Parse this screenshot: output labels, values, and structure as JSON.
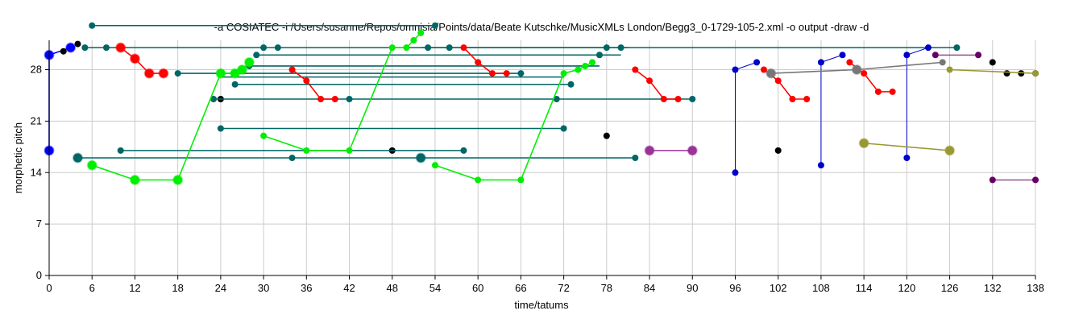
{
  "chart_data": {
    "type": "scatter",
    "title": "-a COSIATEC -i /Users/susanne/Repos/omnisia/Points/data/Beate Kutschke/MusicXMLs London/Begg3_0-1729-105-2.xml -o output -draw -d",
    "xlabel": "time/tatums",
    "ylabel": "morphetic pitch",
    "xlim": [
      0,
      138
    ],
    "ylim": [
      0,
      32
    ],
    "xticks": [
      "0",
      "6",
      "12",
      "18",
      "24",
      "30",
      "36",
      "42",
      "48",
      "54",
      "60",
      "66",
      "72",
      "78",
      "84",
      "90",
      "96",
      "102",
      "108",
      "114",
      "120",
      "126",
      "132",
      "138"
    ],
    "yticks": [
      "0",
      "7",
      "14",
      "21",
      "28"
    ],
    "grid": true,
    "series": [
      {
        "color": "#0000ff",
        "lines": [
          [
            [
              0,
              17
            ],
            [
              0,
              30
            ]
          ],
          [
            [
              0,
              30
            ],
            [
              3,
              31
            ]
          ]
        ],
        "big": [
          [
            0,
            17
          ],
          [
            0,
            30
          ],
          [
            3,
            31
          ]
        ],
        "small": []
      },
      {
        "color": "#000000",
        "lines": [],
        "big": [],
        "small": [
          [
            2,
            30.5
          ],
          [
            4,
            31.5
          ],
          [
            24,
            24
          ],
          [
            48,
            17
          ],
          [
            78,
            19
          ],
          [
            102,
            17
          ],
          [
            132,
            29
          ],
          [
            134,
            27.5
          ],
          [
            136,
            27.5
          ],
          [
            138,
            27.5
          ]
        ]
      },
      {
        "color": "#006666",
        "lines": [
          [
            [
              6,
              34
            ],
            [
              54,
              34
            ]
          ],
          [
            [
              5,
              31
            ],
            [
              81,
              31
            ]
          ],
          [
            [
              18,
              27.5
            ],
            [
              66,
              27.5
            ]
          ],
          [
            [
              24,
              20
            ],
            [
              72,
              20
            ]
          ],
          [
            [
              10,
              17
            ],
            [
              58,
              17
            ]
          ],
          [
            [
              4,
              16
            ],
            [
              82,
              16
            ]
          ],
          [
            [
              24,
              27
            ],
            [
              72,
              27
            ]
          ],
          [
            [
              26,
              26
            ],
            [
              73,
              26
            ]
          ],
          [
            [
              23,
              24
            ],
            [
              90,
              24
            ]
          ],
          [
            [
              29,
              30
            ],
            [
              80,
              30
            ]
          ],
          [
            [
              28,
              28.5
            ],
            [
              77,
              28.5
            ]
          ],
          [
            [
              52,
              31
            ],
            [
              127,
              31
            ]
          ]
        ],
        "big": [
          [
            4,
            16
          ],
          [
            52,
            16
          ]
        ],
        "small": [
          [
            6,
            34
          ],
          [
            54,
            34
          ],
          [
            5,
            31
          ],
          [
            8,
            31
          ],
          [
            30,
            31
          ],
          [
            32,
            31
          ],
          [
            53,
            31
          ],
          [
            56,
            31
          ],
          [
            78,
            31
          ],
          [
            80,
            31
          ],
          [
            127,
            31
          ],
          [
            18,
            27.5
          ],
          [
            66,
            27.5
          ],
          [
            24,
            20
          ],
          [
            72,
            20
          ],
          [
            10,
            17
          ],
          [
            58,
            17
          ],
          [
            82,
            16
          ],
          [
            26,
            26
          ],
          [
            73,
            26
          ],
          [
            23,
            24
          ],
          [
            42,
            24
          ],
          [
            71,
            24
          ],
          [
            90,
            24
          ],
          [
            29,
            30
          ],
          [
            77,
            30
          ],
          [
            28,
            28.5
          ],
          [
            34,
            16
          ]
        ]
      },
      {
        "color": "#ff0000",
        "lines": [
          [
            [
              10,
              31
            ],
            [
              12,
              29.5
            ],
            [
              14,
              27.5
            ],
            [
              16,
              27.5
            ]
          ],
          [
            [
              34,
              28
            ],
            [
              36,
              26.5
            ],
            [
              38,
              24
            ],
            [
              40,
              24
            ]
          ],
          [
            [
              58,
              31
            ],
            [
              60,
              29
            ],
            [
              62,
              27.5
            ],
            [
              64,
              27.5
            ]
          ],
          [
            [
              82,
              28
            ],
            [
              84,
              26.5
            ],
            [
              86,
              24
            ],
            [
              88,
              24
            ]
          ],
          [
            [
              100,
              28
            ],
            [
              102,
              26.5
            ],
            [
              104,
              24
            ],
            [
              106,
              24
            ]
          ],
          [
            [
              112,
              29
            ],
            [
              114,
              27.5
            ],
            [
              116,
              25
            ],
            [
              118,
              25
            ]
          ]
        ],
        "big": [
          [
            10,
            31
          ],
          [
            12,
            29.5
          ],
          [
            14,
            27.5
          ],
          [
            16,
            27.5
          ]
        ],
        "small": [
          [
            34,
            28
          ],
          [
            36,
            26.5
          ],
          [
            38,
            24
          ],
          [
            40,
            24
          ],
          [
            58,
            31
          ],
          [
            60,
            29
          ],
          [
            62,
            27.5
          ],
          [
            64,
            27.5
          ],
          [
            82,
            28
          ],
          [
            84,
            26.5
          ],
          [
            86,
            24
          ],
          [
            88,
            24
          ],
          [
            100,
            28
          ],
          [
            102,
            26.5
          ],
          [
            104,
            24
          ],
          [
            106,
            24
          ],
          [
            112,
            29
          ],
          [
            114,
            27.5
          ],
          [
            116,
            25
          ],
          [
            118,
            25
          ]
        ]
      },
      {
        "color": "#00ee00",
        "lines": [
          [
            [
              6,
              15
            ],
            [
              12,
              13
            ],
            [
              18,
              13
            ],
            [
              24,
              27.5
            ],
            [
              26,
              27.5
            ],
            [
              27,
              28
            ],
            [
              28,
              29
            ]
          ],
          [
            [
              30,
              19
            ],
            [
              36,
              17
            ],
            [
              42,
              17
            ],
            [
              48,
              31
            ],
            [
              50,
              31
            ],
            [
              51,
              32
            ],
            [
              52,
              33
            ]
          ],
          [
            [
              54,
              15
            ],
            [
              60,
              13
            ],
            [
              66,
              13
            ],
            [
              72,
              27.5
            ],
            [
              74,
              28
            ],
            [
              75,
              28.5
            ],
            [
              76,
              29
            ]
          ]
        ],
        "big": [
          [
            6,
            15
          ],
          [
            12,
            13
          ],
          [
            18,
            13
          ],
          [
            24,
            27.5
          ],
          [
            26,
            27.5
          ],
          [
            27,
            28
          ],
          [
            28,
            29
          ]
        ],
        "small": [
          [
            30,
            19
          ],
          [
            36,
            17
          ],
          [
            42,
            17
          ],
          [
            48,
            31
          ],
          [
            50,
            31
          ],
          [
            51,
            32
          ],
          [
            52,
            33
          ],
          [
            54,
            15
          ],
          [
            60,
            13
          ],
          [
            66,
            13
          ],
          [
            72,
            27.5
          ],
          [
            74,
            28
          ],
          [
            75,
            28.5
          ],
          [
            76,
            29
          ]
        ]
      },
      {
        "color": "#993399",
        "lines": [
          [
            [
              84,
              17
            ],
            [
              90,
              17
            ]
          ]
        ],
        "big": [
          [
            84,
            17
          ],
          [
            90,
            17
          ]
        ],
        "small": []
      },
      {
        "color": "#0000cc",
        "lines": [
          [
            [
              96,
              14
            ],
            [
              96,
              28
            ],
            [
              99,
              29
            ]
          ],
          [
            [
              108,
              15
            ],
            [
              108,
              29
            ],
            [
              111,
              30
            ]
          ],
          [
            [
              120,
              16
            ],
            [
              120,
              30
            ],
            [
              123,
              31
            ]
          ]
        ],
        "big": [],
        "small": [
          [
            96,
            14
          ],
          [
            96,
            28
          ],
          [
            99,
            29
          ],
          [
            108,
            15
          ],
          [
            108,
            29
          ],
          [
            111,
            30
          ],
          [
            120,
            16
          ],
          [
            120,
            30
          ],
          [
            123,
            31
          ]
        ]
      },
      {
        "color": "#777777",
        "lines": [
          [
            [
              101,
              27.5
            ],
            [
              113,
              28
            ]
          ],
          [
            [
              113,
              28
            ],
            [
              125,
              29
            ]
          ]
        ],
        "big": [
          [
            101,
            27.5
          ],
          [
            113,
            28
          ]
        ],
        "small": [
          [
            125,
            29
          ]
        ]
      },
      {
        "color": "#999933",
        "lines": [
          [
            [
              114,
              18
            ],
            [
              126,
              17
            ]
          ],
          [
            [
              126,
              28
            ],
            [
              138,
              27.5
            ]
          ]
        ],
        "big": [
          [
            114,
            18
          ],
          [
            126,
            17
          ]
        ],
        "small": [
          [
            126,
            28
          ],
          [
            138,
            27.5
          ]
        ]
      },
      {
        "color": "#660066",
        "lines": [
          [
            [
              124,
              30
            ],
            [
              130,
              30
            ]
          ],
          [
            [
              132,
              13
            ],
            [
              138,
              13
            ]
          ]
        ],
        "big": [],
        "small": [
          [
            124,
            30
          ],
          [
            130,
            30
          ],
          [
            132,
            13
          ],
          [
            138,
            13
          ]
        ]
      }
    ]
  }
}
